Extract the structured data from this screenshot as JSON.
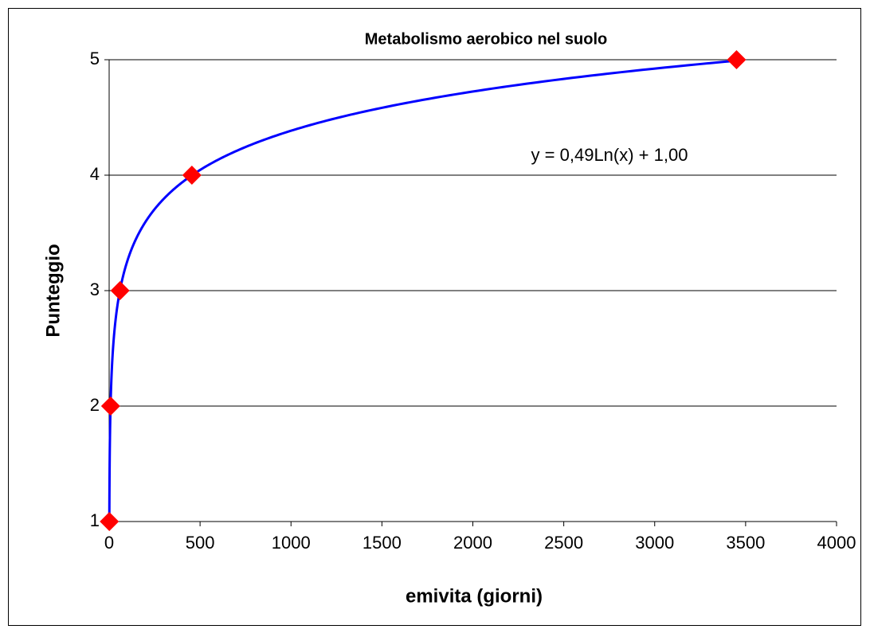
{
  "chart_data": {
    "type": "scatter",
    "title": "Metabolismo aerobico nel suolo",
    "x_label": "emivita (giorni)",
    "y_label": "Punteggio",
    "x": [
      1,
      8,
      60,
      455,
      3450
    ],
    "values": [
      1,
      2,
      3,
      4,
      5
    ],
    "color": "#ff0000",
    "trendline": {
      "kind": "log",
      "a": 0.49,
      "b": 1.0,
      "label": "y = 0,49Ln(x) + 1,00",
      "color": "#0000ff"
    },
    "xlim": [
      0,
      4000
    ],
    "xticks": [
      0,
      500,
      1000,
      1500,
      2000,
      2500,
      3000,
      3500,
      4000
    ],
    "ylim": [
      1,
      5
    ],
    "yticks": [
      1,
      2,
      3,
      4,
      5
    ],
    "grid": true
  }
}
